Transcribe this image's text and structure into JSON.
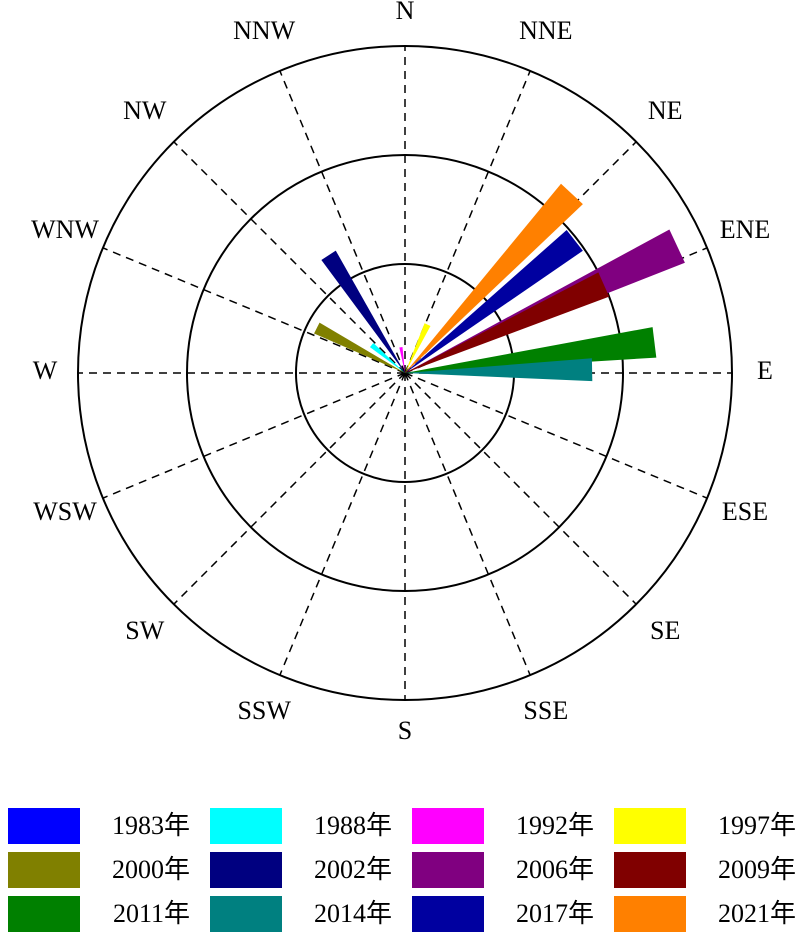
{
  "chart_data": {
    "type": "rose",
    "directions": [
      "N",
      "NNE",
      "NE",
      "ENE",
      "E",
      "ESE",
      "SE",
      "SSE",
      "S",
      "SSW",
      "SW",
      "WSW",
      "W",
      "WNW",
      "NW",
      "NNW"
    ],
    "rlim": [
      0,
      3
    ],
    "rticks": [
      1,
      2,
      3
    ],
    "grid": true,
    "series": [
      {
        "name": "1983年",
        "color": "#0000ff",
        "angle": 0,
        "value": 0
      },
      {
        "name": "1988年",
        "color": "#00ffff",
        "angle": 310,
        "value": 0.4
      },
      {
        "name": "1992年",
        "color": "#ff00ff",
        "angle": 351,
        "value": 0.24
      },
      {
        "name": "1997年",
        "color": "#ffff00",
        "angle": 25,
        "value": 0.49
      },
      {
        "name": "2000年",
        "color": "#808000",
        "angle": 297,
        "value": 0.91
      },
      {
        "name": "2002年",
        "color": "#000080",
        "angle": 327,
        "value": 1.29
      },
      {
        "name": "2006年",
        "color": "#800080",
        "angle": 65,
        "value": 2.76
      },
      {
        "name": "2009年",
        "color": "#800000",
        "angle": 66,
        "value": 2.0
      },
      {
        "name": "2011年",
        "color": "#008000",
        "angle": 83,
        "value": 2.31
      },
      {
        "name": "2014年",
        "color": "#008080",
        "angle": 89,
        "value": 1.72
      },
      {
        "name": "2017年",
        "color": "#0000a0",
        "angle": 52,
        "value": 1.98
      },
      {
        "name": "2021年",
        "color": "#ff8000",
        "angle": 43,
        "value": 2.25
      }
    ]
  }
}
